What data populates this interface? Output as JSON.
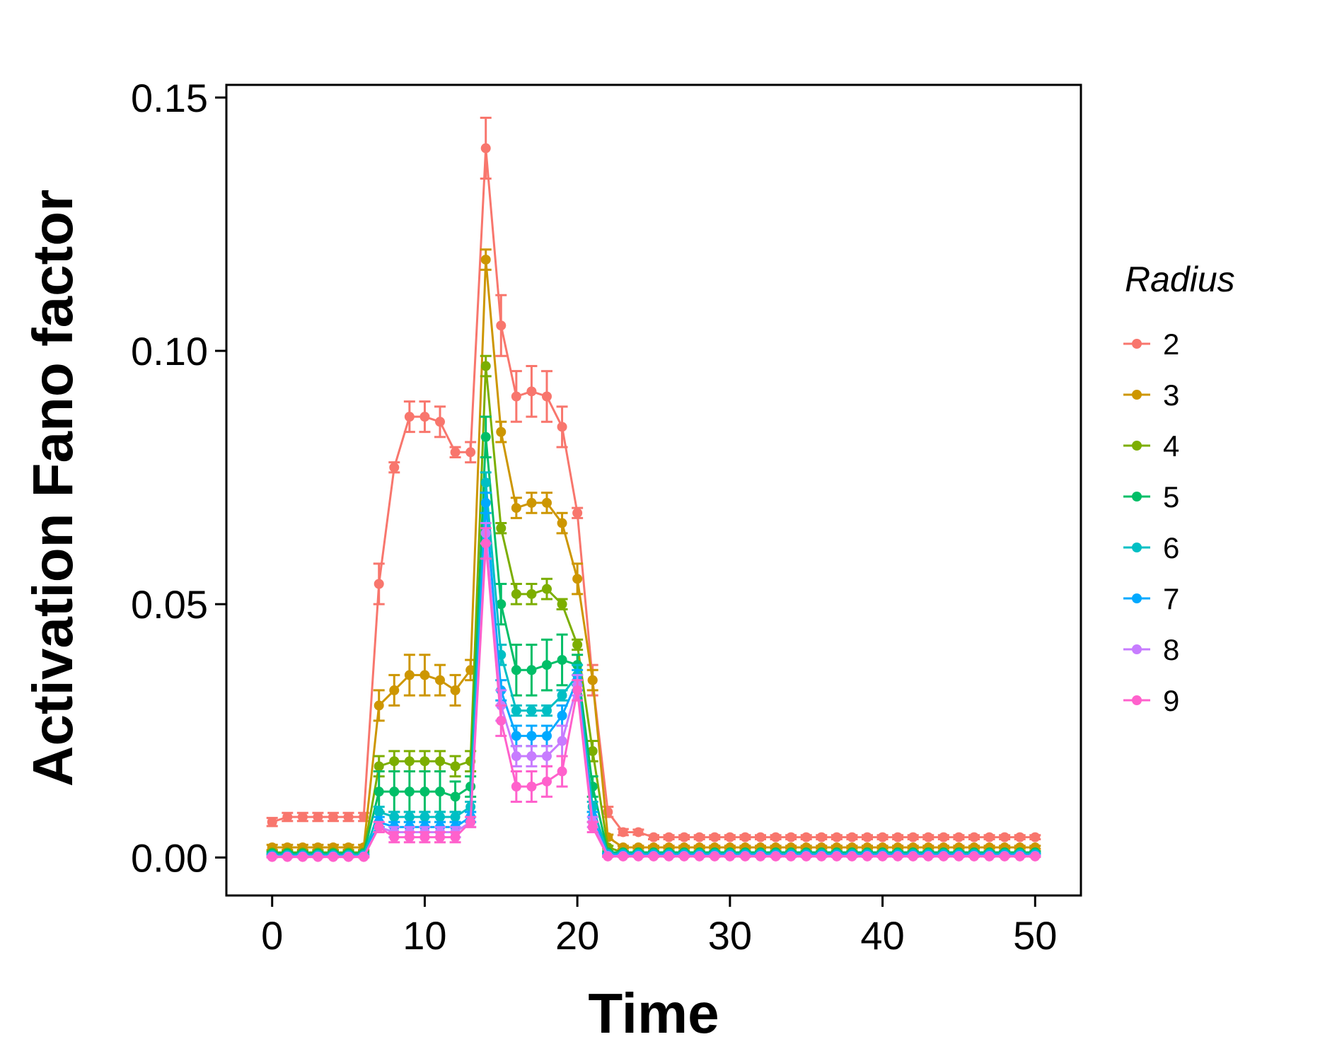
{
  "chart_data": {
    "type": "line",
    "title": "",
    "xlabel": "Time",
    "ylabel": "Activation Fano factor",
    "xlim": [
      -3,
      53
    ],
    "ylim": [
      -0.0075,
      0.1525
    ],
    "xticks": [
      0,
      10,
      20,
      30,
      40,
      50
    ],
    "yticks": [
      0.0,
      0.05,
      0.1,
      0.15
    ],
    "xtick_labels": [
      "0",
      "10",
      "20",
      "30",
      "40",
      "50"
    ],
    "ytick_labels": [
      "0.00",
      "0.05",
      "0.10",
      "0.15"
    ],
    "grid": false,
    "error_bars": true,
    "legend": {
      "title": "Radius",
      "placement": "right"
    },
    "x": [
      0,
      1,
      2,
      3,
      4,
      5,
      6,
      7,
      8,
      9,
      10,
      11,
      12,
      13,
      14,
      15,
      16,
      17,
      18,
      19,
      20,
      21,
      22,
      23,
      24,
      25,
      26,
      27,
      28,
      29,
      30,
      31,
      32,
      33,
      34,
      35,
      36,
      37,
      38,
      39,
      40,
      41,
      42,
      43,
      44,
      45,
      46,
      47,
      48,
      49,
      50
    ],
    "series": [
      {
        "name": "2",
        "color": "#F8766D",
        "values": [
          0.007,
          0.008,
          0.008,
          0.008,
          0.008,
          0.008,
          0.008,
          0.054,
          0.077,
          0.087,
          0.087,
          0.086,
          0.08,
          0.08,
          0.14,
          0.105,
          0.091,
          0.092,
          0.091,
          0.085,
          0.068,
          0.035,
          0.009,
          0.005,
          0.005,
          0.004,
          0.004,
          0.004,
          0.004,
          0.004,
          0.004,
          0.004,
          0.004,
          0.004,
          0.004,
          0.004,
          0.004,
          0.004,
          0.004,
          0.004,
          0.004,
          0.004,
          0.004,
          0.004,
          0.004,
          0.004,
          0.004,
          0.004,
          0.004,
          0.004,
          0.004
        ],
        "errors": [
          0.0008,
          0.0008,
          0.0008,
          0.0008,
          0.0008,
          0.0008,
          0.0008,
          0.004,
          0.001,
          0.003,
          0.003,
          0.003,
          0.001,
          0.002,
          0.006,
          0.006,
          0.005,
          0.005,
          0.005,
          0.004,
          0.001,
          0.003,
          0.001,
          0.0006,
          0.0005,
          0.0004,
          0.0004,
          0.0004,
          0.0004,
          0.0004,
          0.0004,
          0.0004,
          0.0004,
          0.0004,
          0.0004,
          0.0004,
          0.0004,
          0.0004,
          0.0004,
          0.0004,
          0.0004,
          0.0004,
          0.0004,
          0.0004,
          0.0004,
          0.0004,
          0.0004,
          0.0004,
          0.0004,
          0.0004,
          0.0004
        ]
      },
      {
        "name": "3",
        "color": "#CD9600",
        "values": [
          0.002,
          0.002,
          0.002,
          0.002,
          0.002,
          0.002,
          0.002,
          0.03,
          0.033,
          0.036,
          0.036,
          0.035,
          0.033,
          0.037,
          0.118,
          0.084,
          0.069,
          0.07,
          0.07,
          0.066,
          0.055,
          0.035,
          0.004,
          0.002,
          0.002,
          0.002,
          0.002,
          0.002,
          0.002,
          0.002,
          0.002,
          0.002,
          0.002,
          0.002,
          0.002,
          0.002,
          0.002,
          0.002,
          0.002,
          0.002,
          0.002,
          0.002,
          0.002,
          0.002,
          0.002,
          0.002,
          0.002,
          0.002,
          0.002,
          0.002,
          0.002
        ],
        "errors": [
          0.0005,
          0.0005,
          0.0005,
          0.0005,
          0.0005,
          0.0005,
          0.0005,
          0.003,
          0.003,
          0.004,
          0.004,
          0.003,
          0.003,
          0.002,
          0.002,
          0.002,
          0.002,
          0.002,
          0.002,
          0.002,
          0.003,
          0.002,
          0.0005,
          0.0003,
          0.0003,
          0.0003,
          0.0003,
          0.0003,
          0.0003,
          0.0003,
          0.0003,
          0.0003,
          0.0003,
          0.0003,
          0.0003,
          0.0003,
          0.0003,
          0.0003,
          0.0003,
          0.0003,
          0.0003,
          0.0003,
          0.0003,
          0.0003,
          0.0003,
          0.0003,
          0.0003,
          0.0003,
          0.0003,
          0.0003,
          0.0003
        ]
      },
      {
        "name": "4",
        "color": "#7CAE00",
        "values": [
          0.001,
          0.001,
          0.001,
          0.001,
          0.001,
          0.001,
          0.001,
          0.018,
          0.019,
          0.019,
          0.019,
          0.019,
          0.018,
          0.019,
          0.097,
          0.065,
          0.052,
          0.052,
          0.053,
          0.05,
          0.042,
          0.021,
          0.002,
          0.001,
          0.001,
          0.001,
          0.001,
          0.001,
          0.001,
          0.001,
          0.001,
          0.001,
          0.001,
          0.001,
          0.001,
          0.001,
          0.001,
          0.001,
          0.001,
          0.001,
          0.001,
          0.001,
          0.001,
          0.001,
          0.001,
          0.001,
          0.001,
          0.001,
          0.001,
          0.001,
          0.001
        ],
        "errors": [
          0.0003,
          0.0003,
          0.0003,
          0.0003,
          0.0003,
          0.0003,
          0.0003,
          0.002,
          0.002,
          0.002,
          0.002,
          0.002,
          0.002,
          0.002,
          0.002,
          0.001,
          0.002,
          0.002,
          0.002,
          0.001,
          0.001,
          0.002,
          0.0003,
          0.0002,
          0.0002,
          0.0002,
          0.0002,
          0.0002,
          0.0002,
          0.0002,
          0.0002,
          0.0002,
          0.0002,
          0.0002,
          0.0002,
          0.0002,
          0.0002,
          0.0002,
          0.0002,
          0.0002,
          0.0002,
          0.0002,
          0.0002,
          0.0002,
          0.0002,
          0.0002,
          0.0002,
          0.0002,
          0.0002,
          0.0002,
          0.0002
        ]
      },
      {
        "name": "5",
        "color": "#00BE67",
        "values": [
          0.0008,
          0.0008,
          0.0008,
          0.0008,
          0.0008,
          0.0008,
          0.0008,
          0.013,
          0.013,
          0.013,
          0.013,
          0.013,
          0.012,
          0.014,
          0.083,
          0.05,
          0.037,
          0.037,
          0.038,
          0.039,
          0.038,
          0.014,
          0.001,
          0.001,
          0.001,
          0.001,
          0.001,
          0.001,
          0.001,
          0.001,
          0.001,
          0.001,
          0.001,
          0.001,
          0.001,
          0.001,
          0.001,
          0.001,
          0.001,
          0.001,
          0.001,
          0.001,
          0.001,
          0.001,
          0.001,
          0.001,
          0.001,
          0.001,
          0.001,
          0.001,
          0.001
        ],
        "errors": [
          0.0003,
          0.0003,
          0.0003,
          0.0003,
          0.0003,
          0.0003,
          0.0003,
          0.004,
          0.004,
          0.004,
          0.004,
          0.004,
          0.003,
          0.002,
          0.004,
          0.004,
          0.005,
          0.005,
          0.005,
          0.005,
          0.002,
          0.002,
          0.0002,
          0.0002,
          0.0002,
          0.0002,
          0.0002,
          0.0002,
          0.0002,
          0.0002,
          0.0002,
          0.0002,
          0.0002,
          0.0002,
          0.0002,
          0.0002,
          0.0002,
          0.0002,
          0.0002,
          0.0002,
          0.0002,
          0.0002,
          0.0002,
          0.0002,
          0.0002,
          0.0002,
          0.0002,
          0.0002,
          0.0002,
          0.0002,
          0.0002
        ]
      },
      {
        "name": "6",
        "color": "#00BFC4",
        "values": [
          0.0005,
          0.0005,
          0.0005,
          0.0005,
          0.0005,
          0.0005,
          0.0005,
          0.009,
          0.008,
          0.008,
          0.008,
          0.008,
          0.008,
          0.01,
          0.074,
          0.04,
          0.029,
          0.029,
          0.029,
          0.032,
          0.036,
          0.01,
          0.0007,
          0.0007,
          0.0007,
          0.0007,
          0.0007,
          0.0007,
          0.0007,
          0.0007,
          0.0007,
          0.0007,
          0.0007,
          0.0007,
          0.0007,
          0.0007,
          0.0007,
          0.0007,
          0.0007,
          0.0007,
          0.0007,
          0.0007,
          0.0007,
          0.0007,
          0.0007,
          0.0007,
          0.0007,
          0.0007,
          0.0007,
          0.0007,
          0.0007
        ],
        "errors": [
          0.0002,
          0.0002,
          0.0002,
          0.0002,
          0.0002,
          0.0002,
          0.0002,
          0.001,
          0.001,
          0.001,
          0.001,
          0.001,
          0.001,
          0.001,
          0.002,
          0.002,
          0.001,
          0.001,
          0.001,
          0.001,
          0.002,
          0.001,
          0.0002,
          0.0002,
          0.0002,
          0.0002,
          0.0002,
          0.0002,
          0.0002,
          0.0002,
          0.0002,
          0.0002,
          0.0002,
          0.0002,
          0.0002,
          0.0002,
          0.0002,
          0.0002,
          0.0002,
          0.0002,
          0.0002,
          0.0002,
          0.0002,
          0.0002,
          0.0002,
          0.0002,
          0.0002,
          0.0002,
          0.0002,
          0.0002,
          0.0002
        ]
      },
      {
        "name": "7",
        "color": "#00A9FF",
        "values": [
          0.0003,
          0.0003,
          0.0003,
          0.0003,
          0.0003,
          0.0003,
          0.0003,
          0.007,
          0.006,
          0.006,
          0.006,
          0.006,
          0.006,
          0.008,
          0.07,
          0.033,
          0.024,
          0.024,
          0.024,
          0.028,
          0.035,
          0.008,
          0.0005,
          0.0005,
          0.0005,
          0.0005,
          0.0005,
          0.0005,
          0.0005,
          0.0005,
          0.0005,
          0.0005,
          0.0005,
          0.0005,
          0.0005,
          0.0005,
          0.0005,
          0.0005,
          0.0005,
          0.0005,
          0.0005,
          0.0005,
          0.0005,
          0.0005,
          0.0005,
          0.0005,
          0.0005,
          0.0005,
          0.0005,
          0.0005,
          0.0005
        ],
        "errors": [
          0.0002,
          0.0002,
          0.0002,
          0.0002,
          0.0002,
          0.0002,
          0.0002,
          0.001,
          0.001,
          0.001,
          0.001,
          0.001,
          0.001,
          0.001,
          0.002,
          0.002,
          0.002,
          0.002,
          0.002,
          0.002,
          0.002,
          0.001,
          0.0002,
          0.0002,
          0.0002,
          0.0002,
          0.0002,
          0.0002,
          0.0002,
          0.0002,
          0.0002,
          0.0002,
          0.0002,
          0.0002,
          0.0002,
          0.0002,
          0.0002,
          0.0002,
          0.0002,
          0.0002,
          0.0002,
          0.0002,
          0.0002,
          0.0002,
          0.0002,
          0.0002,
          0.0002,
          0.0002,
          0.0002,
          0.0002,
          0.0002
        ]
      },
      {
        "name": "8",
        "color": "#C77CFF",
        "values": [
          0.0002,
          0.0002,
          0.0002,
          0.0002,
          0.0002,
          0.0002,
          0.0002,
          0.006,
          0.005,
          0.005,
          0.005,
          0.005,
          0.005,
          0.007,
          0.064,
          0.03,
          0.02,
          0.02,
          0.02,
          0.023,
          0.034,
          0.007,
          0.0003,
          0.0003,
          0.0003,
          0.0003,
          0.0003,
          0.0003,
          0.0003,
          0.0003,
          0.0003,
          0.0003,
          0.0003,
          0.0003,
          0.0003,
          0.0003,
          0.0003,
          0.0003,
          0.0003,
          0.0003,
          0.0003,
          0.0003,
          0.0003,
          0.0003,
          0.0003,
          0.0003,
          0.0003,
          0.0003,
          0.0003,
          0.0003,
          0.0003
        ],
        "errors": [
          0.0001,
          0.0001,
          0.0001,
          0.0001,
          0.0001,
          0.0001,
          0.0001,
          0.001,
          0.001,
          0.001,
          0.001,
          0.001,
          0.001,
          0.001,
          0.002,
          0.003,
          0.002,
          0.002,
          0.002,
          0.003,
          0.002,
          0.001,
          0.0001,
          0.0001,
          0.0001,
          0.0001,
          0.0001,
          0.0001,
          0.0001,
          0.0001,
          0.0001,
          0.0001,
          0.0001,
          0.0001,
          0.0001,
          0.0001,
          0.0001,
          0.0001,
          0.0001,
          0.0001,
          0.0001,
          0.0001,
          0.0001,
          0.0001,
          0.0001,
          0.0001,
          0.0001,
          0.0001,
          0.0001,
          0.0001,
          0.0001
        ]
      },
      {
        "name": "9",
        "color": "#FF61CC",
        "values": [
          0.0001,
          0.0001,
          0.0001,
          0.0001,
          0.0001,
          0.0001,
          0.0001,
          0.006,
          0.004,
          0.004,
          0.004,
          0.004,
          0.004,
          0.007,
          0.062,
          0.027,
          0.014,
          0.014,
          0.015,
          0.017,
          0.033,
          0.006,
          0.0002,
          0.0002,
          0.0002,
          0.0002,
          0.0002,
          0.0002,
          0.0002,
          0.0002,
          0.0002,
          0.0002,
          0.0002,
          0.0002,
          0.0002,
          0.0002,
          0.0002,
          0.0002,
          0.0002,
          0.0002,
          0.0002,
          0.0002,
          0.0002,
          0.0002,
          0.0002,
          0.0002,
          0.0002,
          0.0002,
          0.0002,
          0.0002,
          0.0002
        ],
        "errors": [
          0.0001,
          0.0001,
          0.0001,
          0.0001,
          0.0001,
          0.0001,
          0.0001,
          0.001,
          0.001,
          0.001,
          0.001,
          0.001,
          0.001,
          0.001,
          0.003,
          0.003,
          0.003,
          0.003,
          0.003,
          0.003,
          0.002,
          0.001,
          0.0001,
          0.0001,
          0.0001,
          0.0001,
          0.0001,
          0.0001,
          0.0001,
          0.0001,
          0.0001,
          0.0001,
          0.0001,
          0.0001,
          0.0001,
          0.0001,
          0.0001,
          0.0001,
          0.0001,
          0.0001,
          0.0001,
          0.0001,
          0.0001,
          0.0001,
          0.0001,
          0.0001,
          0.0001,
          0.0001,
          0.0001,
          0.0001,
          0.0001
        ]
      }
    ]
  }
}
